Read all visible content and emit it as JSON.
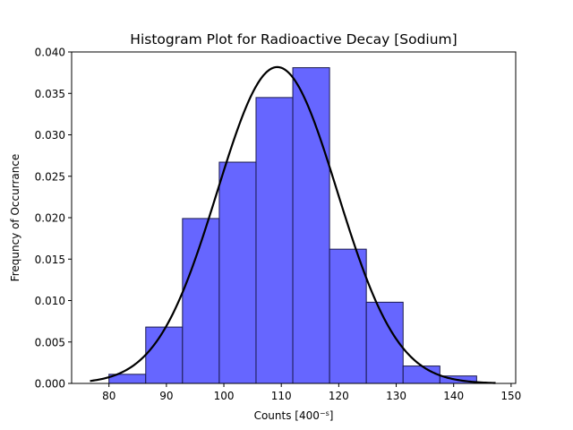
{
  "chart_data": {
    "type": "bar",
    "title": "Histogram Plot for Radioactive Decay [Sodium]",
    "xlabel_base": "Counts [400",
    "xlabel_sup": "−s",
    "xlabel_close": "]",
    "ylabel": "Frequncy of Occurrance",
    "xlim": [
      73.5,
      150.8
    ],
    "ylim": [
      0,
      0.04
    ],
    "xticks": [
      80,
      90,
      100,
      110,
      120,
      130,
      140,
      150
    ],
    "xtick_labels": [
      "80",
      "90",
      "100",
      "110",
      "120",
      "130",
      "140",
      "150"
    ],
    "yticks": [
      0,
      0.005,
      0.01,
      0.015,
      0.02,
      0.025,
      0.03,
      0.035,
      0.04
    ],
    "ytick_labels": [
      "0.000",
      "0.005",
      "0.010",
      "0.015",
      "0.020",
      "0.025",
      "0.030",
      "0.035",
      "0.040"
    ],
    "bins": [
      {
        "x0": 80.0,
        "x1": 86.4,
        "value": 0.0011
      },
      {
        "x0": 86.4,
        "x1": 92.8,
        "value": 0.0068
      },
      {
        "x0": 92.8,
        "x1": 99.2,
        "value": 0.0199
      },
      {
        "x0": 99.2,
        "x1": 105.6,
        "value": 0.0267
      },
      {
        "x0": 105.6,
        "x1": 112.0,
        "value": 0.0345
      },
      {
        "x0": 112.0,
        "x1": 118.4,
        "value": 0.0381
      },
      {
        "x0": 118.4,
        "x1": 124.8,
        "value": 0.0162
      },
      {
        "x0": 124.8,
        "x1": 131.2,
        "value": 0.0098
      },
      {
        "x0": 131.2,
        "x1": 137.6,
        "value": 0.0021
      },
      {
        "x0": 137.6,
        "x1": 144.0,
        "value": 0.0009
      }
    ],
    "fit_curve": {
      "type": "normal",
      "mean": 109.3,
      "std": 10.45,
      "x_range": [
        76.7,
        147.3
      ]
    },
    "bar_color": "#6666ff",
    "bar_edge_color": "#1a1a4d",
    "curve_color": "#000000",
    "grid": false,
    "legend": "none"
  }
}
